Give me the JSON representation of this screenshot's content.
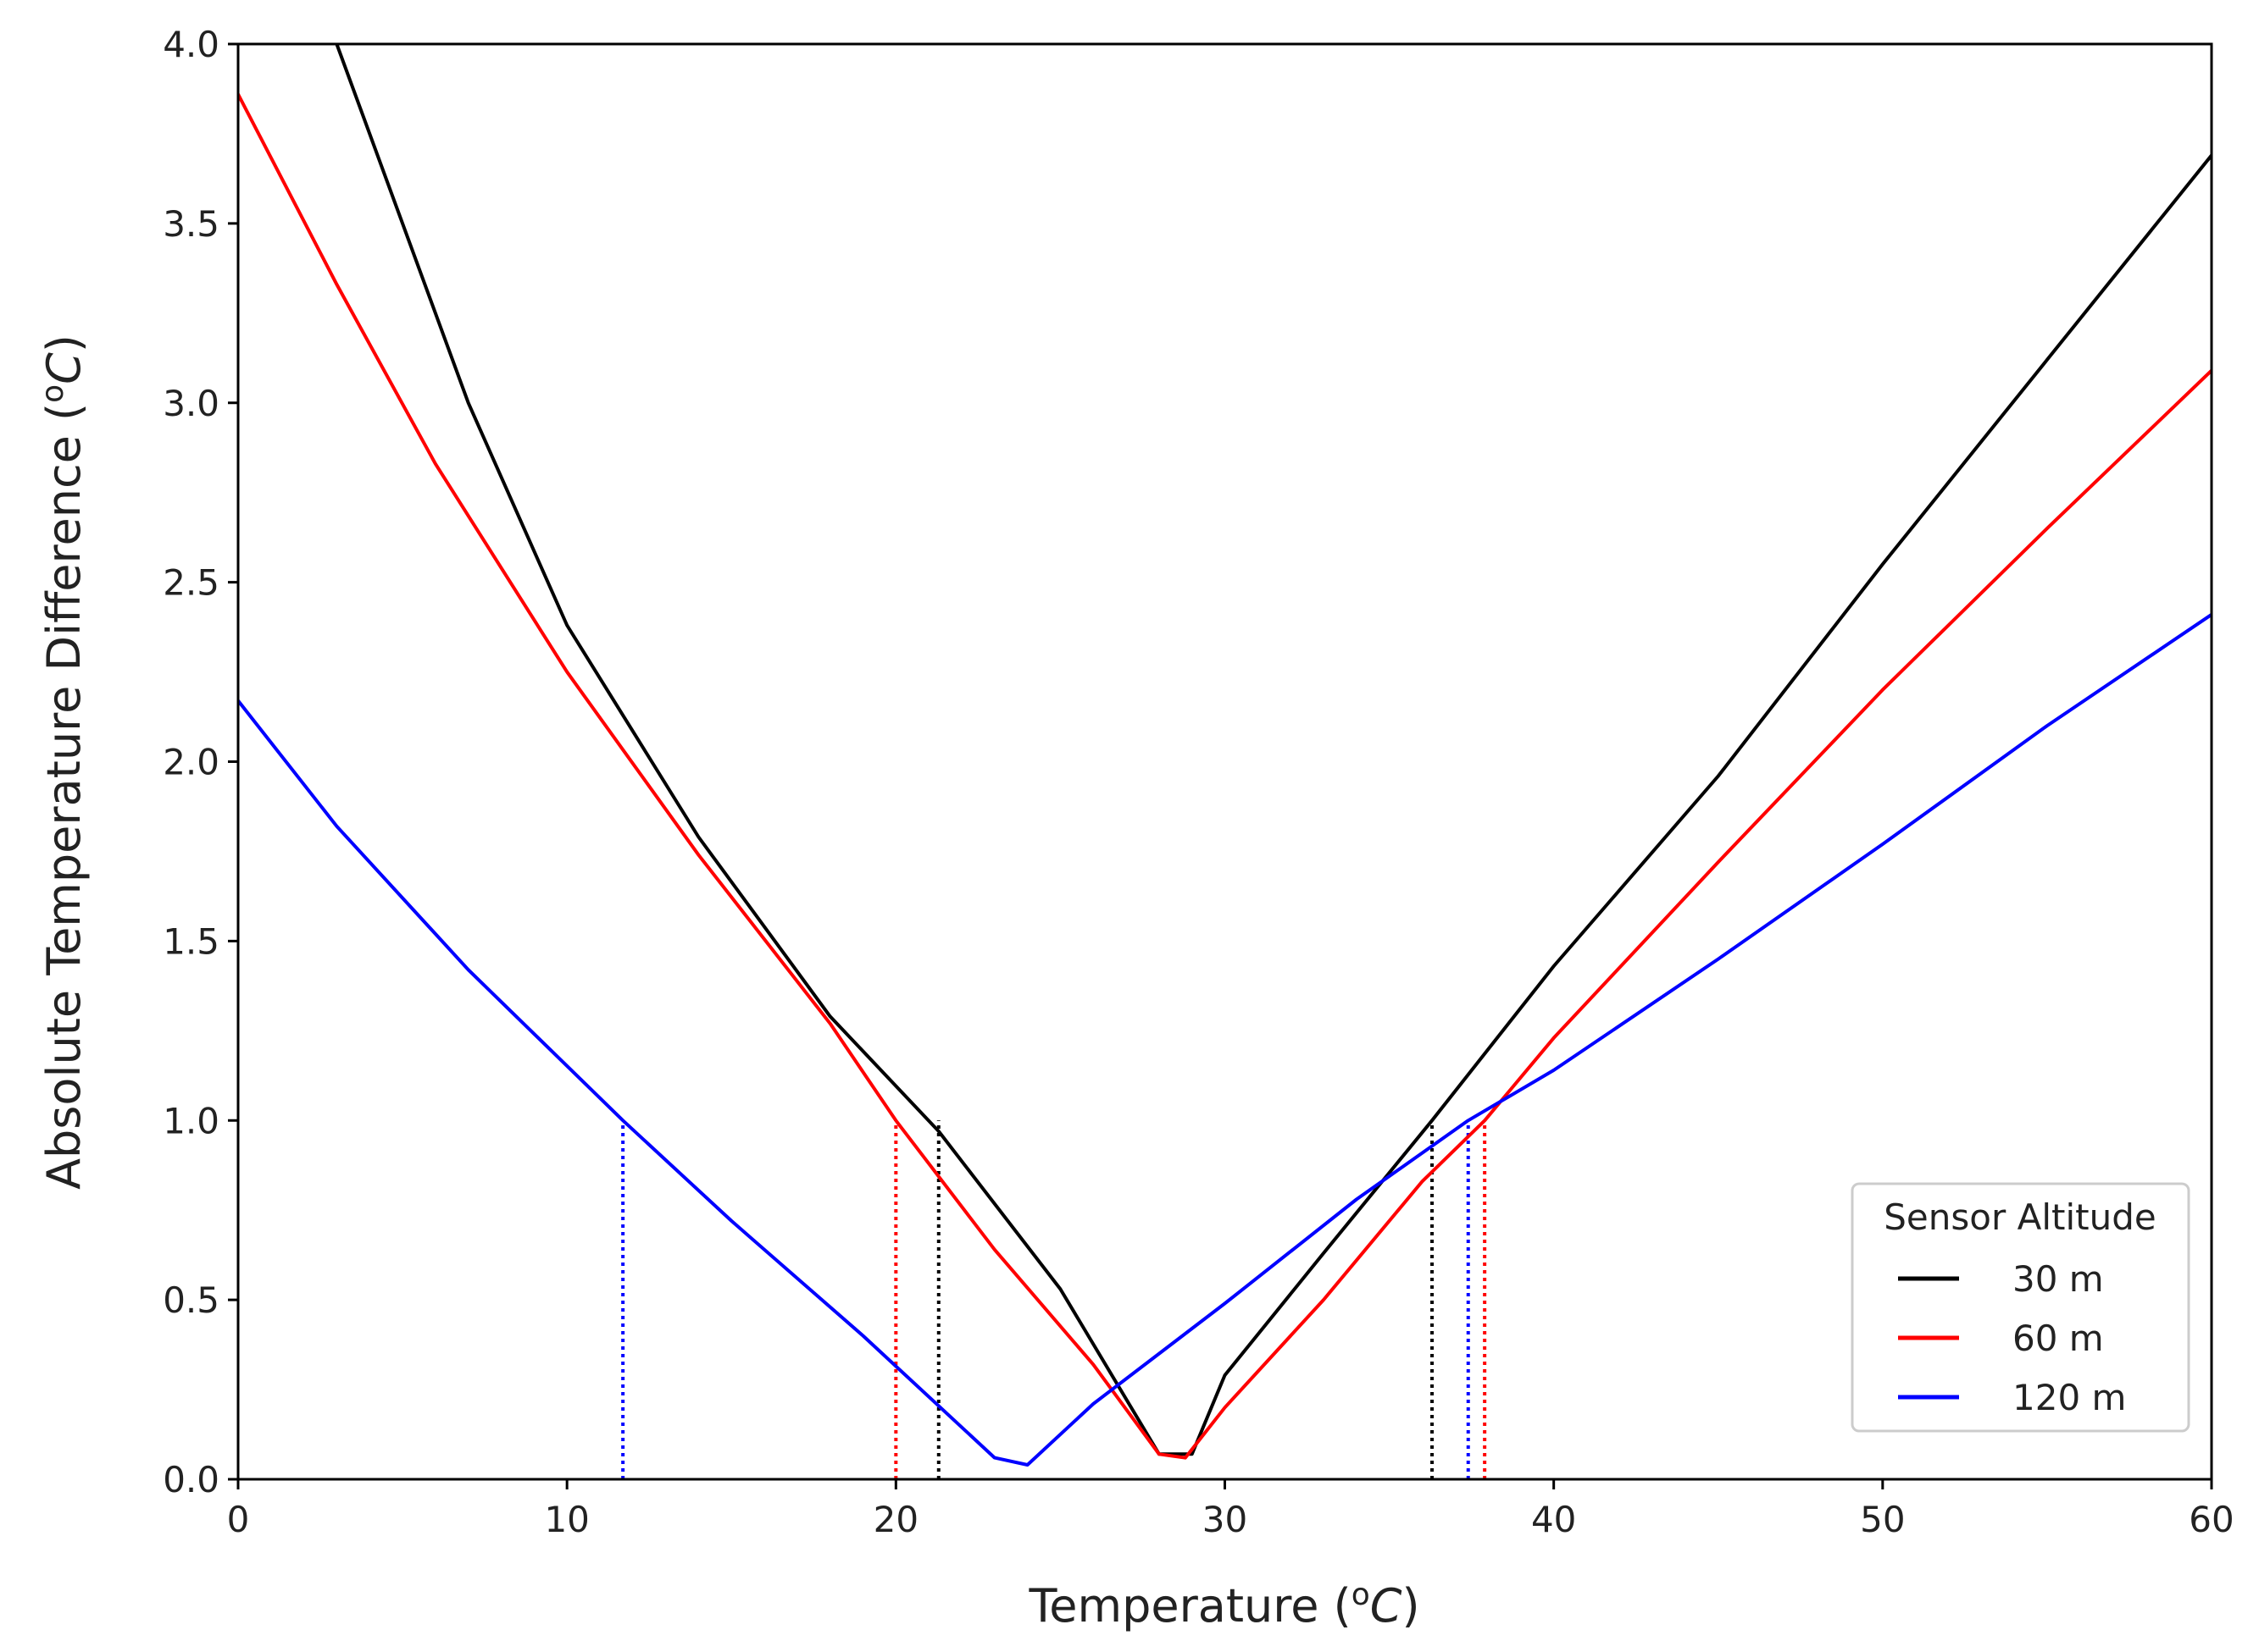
{
  "chart_data": {
    "type": "line",
    "title": "",
    "xlabel": {
      "prefix": "Temperature (",
      "sup": "o",
      "unit": "C",
      "suffix": ")"
    },
    "ylabel": {
      "prefix": "Absolute Temperature Difference (",
      "sup": "o",
      "unit": "C",
      "suffix": ")"
    },
    "xlim": [
      0,
      60
    ],
    "ylim": [
      0,
      4
    ],
    "xticks": [
      0,
      10,
      20,
      30,
      40,
      50,
      60
    ],
    "xtick_labels": [
      "0",
      "10",
      "20",
      "30",
      "40",
      "50",
      "60"
    ],
    "yticks": [
      0,
      0.5,
      1,
      1.5,
      2,
      2.5,
      3,
      3.5,
      4
    ],
    "ytick_labels": [
      "0.0",
      "0.5",
      "1.0",
      "1.5",
      "2.0",
      "2.5",
      "3.0",
      "3.5",
      "4.0"
    ],
    "grid": false,
    "legend": {
      "title": "Sensor Altitude",
      "location": "lower-right"
    },
    "series": [
      {
        "name": "30 m",
        "color": "#000000",
        "x": [
          3.0,
          7,
          10,
          14,
          18,
          21.3,
          25,
          28.0,
          29.0,
          30,
          33,
          36.3,
          40,
          45,
          50,
          55,
          60
        ],
        "y": [
          4.0,
          3.0,
          2.38,
          1.79,
          1.29,
          0.97,
          0.53,
          0.07,
          0.07,
          0.29,
          0.63,
          1.0,
          1.43,
          1.96,
          2.55,
          3.12,
          3.69
        ]
      },
      {
        "name": "60 m",
        "color": "#ff0000",
        "x": [
          0,
          3,
          6,
          10,
          14,
          18,
          20.0,
          23,
          26,
          28.0,
          28.8,
          30,
          33,
          36,
          37.9,
          40,
          45,
          50,
          55,
          60
        ],
        "y": [
          3.86,
          3.33,
          2.83,
          2.25,
          1.74,
          1.27,
          1.0,
          0.64,
          0.32,
          0.07,
          0.06,
          0.2,
          0.5,
          0.83,
          1.0,
          1.23,
          1.72,
          2.2,
          2.65,
          3.09
        ]
      },
      {
        "name": "120 m",
        "color": "#0000ff",
        "x": [
          0,
          3,
          7,
          11.7,
          15,
          19,
          23.0,
          24.0,
          26,
          30,
          34,
          37.4,
          40,
          45,
          50,
          55,
          60
        ],
        "y": [
          2.17,
          1.82,
          1.42,
          1.0,
          0.72,
          0.4,
          0.06,
          0.04,
          0.21,
          0.49,
          0.78,
          1.0,
          1.14,
          1.45,
          1.77,
          2.1,
          2.41
        ]
      }
    ],
    "threshold_lines": [
      {
        "x": 11.7,
        "y_top": 1.0,
        "series": "120 m",
        "color": "#0000ff"
      },
      {
        "x": 20.0,
        "y_top": 1.0,
        "series": "60 m",
        "color": "#ff0000"
      },
      {
        "x": 21.3,
        "y_top": 1.0,
        "series": "30 m",
        "color": "#000000"
      },
      {
        "x": 36.3,
        "y_top": 1.0,
        "series": "30 m",
        "color": "#000000"
      },
      {
        "x": 37.4,
        "y_top": 1.0,
        "series": "120 m",
        "color": "#0000ff"
      },
      {
        "x": 37.9,
        "y_top": 1.0,
        "series": "60 m",
        "color": "#ff0000"
      }
    ]
  }
}
